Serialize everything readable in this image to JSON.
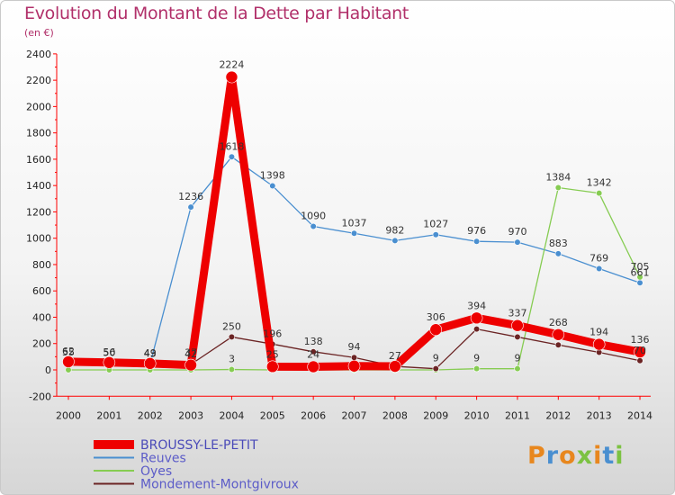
{
  "title": "Evolution du Montant de la Dette par Habitant",
  "subtitle": "(en €)",
  "logo": {
    "text": "Proxiti",
    "colors": [
      "#e8871e",
      "#4a8fd0",
      "#e8871e",
      "#7cc242",
      "#e8871e",
      "#4a8fd0",
      "#7cc242"
    ]
  },
  "chart_data": {
    "type": "line",
    "x": [
      "2000",
      "2001",
      "2002",
      "2003",
      "2004",
      "2005",
      "2006",
      "2007",
      "2008",
      "2009",
      "2010",
      "2011",
      "2012",
      "2013",
      "2014"
    ],
    "ylim": [
      -200,
      2400
    ],
    "yticks": [
      -200,
      0,
      200,
      400,
      600,
      800,
      1000,
      1200,
      1400,
      1600,
      1800,
      2000,
      2200,
      2400
    ],
    "grid": false,
    "legend_position": "bottom-left",
    "series": [
      {
        "name": "Reuves",
        "color": "#4a8fd0",
        "values": [
          55,
          50,
          43,
          1236,
          1618,
          1398,
          1090,
          1037,
          982,
          1027,
          976,
          970,
          883,
          769,
          661
        ],
        "labels": [
          "55",
          "50",
          "43",
          "1236",
          "1618",
          "1398",
          "1090",
          "1037",
          "982",
          "1027",
          "976",
          "970",
          "883",
          "769",
          "661"
        ]
      },
      {
        "name": "Oyes",
        "color": "#86cc52",
        "values": [
          0,
          0,
          0,
          0,
          3,
          0,
          0,
          0,
          0,
          0,
          9,
          9,
          1384,
          1342,
          705
        ],
        "labels": [
          "",
          "",
          "",
          "",
          "3",
          "",
          "",
          "",
          "",
          "",
          "9",
          "9",
          "1384",
          "1342",
          "705"
        ]
      },
      {
        "name": "Mondement-Montgivroux",
        "color": "#6b2424",
        "values": [
          62,
          56,
          49,
          42,
          250,
          196,
          138,
          94,
          27,
          9,
          310,
          250,
          190,
          133,
          70
        ],
        "labels": [
          "62",
          "56",
          "49",
          "42",
          "250",
          "196",
          "138",
          "94",
          "27",
          "9",
          "",
          "",
          "",
          "",
          "70"
        ]
      },
      {
        "name": "BROUSSY-LE-PETIT",
        "color": "#ee0000",
        "values": [
          62,
          56,
          49,
          37,
          2224,
          25,
          24,
          29,
          27,
          306,
          394,
          337,
          268,
          194,
          136
        ],
        "labels": [
          "",
          "",
          "",
          "37",
          "2224",
          "25",
          "24",
          "",
          "",
          "306",
          "394",
          "337",
          "268",
          "194",
          "136"
        ]
      }
    ]
  }
}
